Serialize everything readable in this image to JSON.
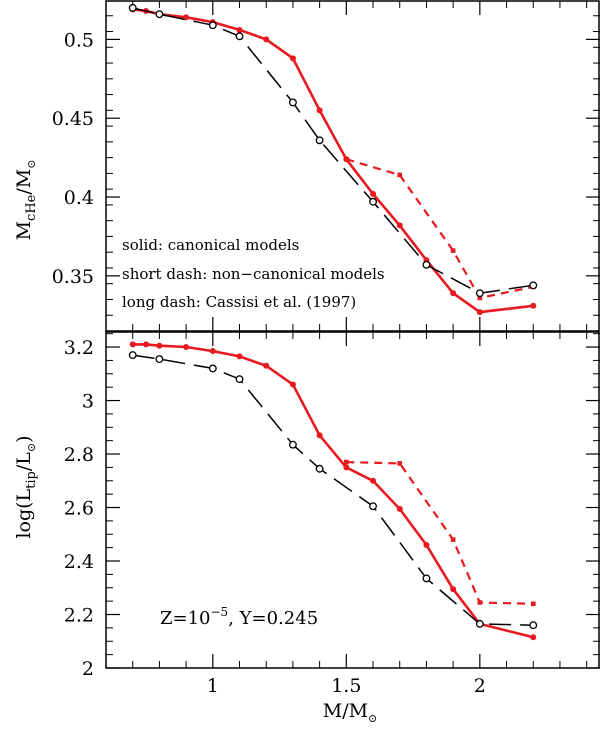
{
  "chart_data": [
    {
      "type": "line",
      "panel": "top",
      "ylabel_main": "M",
      "ylabel_sub": "cHe",
      "ylabel_tail": "/M",
      "ylim": [
        0.315,
        0.525
      ],
      "yticks": [
        0.35,
        0.4,
        0.45,
        0.5
      ],
      "ytick_labels": [
        "0.35",
        "0.4",
        "0.45",
        "0.5"
      ],
      "annotations": [
        "solid: canonical models",
        "short dash: non−canonical models",
        "long dash: Cassisi et al. (1997)"
      ],
      "series": [
        {
          "name": "canonical models",
          "style": "solid",
          "color": "#e8191f",
          "x": [
            0.7,
            0.75,
            0.8,
            0.9,
            1.0,
            1.1,
            1.2,
            1.3,
            1.4,
            1.5,
            1.6,
            1.7,
            1.8,
            1.9,
            2.0,
            2.2
          ],
          "y": [
            0.519,
            0.518,
            0.516,
            0.514,
            0.511,
            0.506,
            0.5,
            0.488,
            0.455,
            0.424,
            0.402,
            0.382,
            0.36,
            0.339,
            0.327,
            0.331
          ]
        },
        {
          "name": "non-canonical models",
          "style": "short-dash",
          "color": "#e8191f",
          "x": [
            1.5,
            1.7,
            1.9,
            2.0,
            2.2
          ],
          "y": [
            0.424,
            0.414,
            0.366,
            0.336,
            0.343
          ]
        },
        {
          "name": "Cassisi et al. (1997)",
          "style": "long-dash",
          "color": "#000000",
          "x": [
            0.7,
            0.8,
            1.0,
            1.1,
            1.3,
            1.4,
            1.6,
            1.8,
            2.0,
            2.2
          ],
          "y": [
            0.52,
            0.516,
            0.509,
            0.502,
            0.46,
            0.436,
            0.397,
            0.357,
            0.339,
            0.344
          ]
        }
      ]
    },
    {
      "type": "line",
      "panel": "bottom",
      "ylabel_main": "log(L",
      "ylabel_sub": "tip",
      "ylabel_tail": "/L",
      "ylabel_close": ")",
      "xlabel_main": "M/M",
      "ylim": [
        2.0,
        3.26
      ],
      "yticks": [
        2.0,
        2.2,
        2.4,
        2.6,
        2.8,
        3.0,
        3.2
      ],
      "ytick_labels": [
        "2",
        "2.2",
        "2.4",
        "2.6",
        "2.8",
        "3",
        "3.2"
      ],
      "xlim": [
        0.6,
        2.45
      ],
      "xticks": [
        1.0,
        1.5,
        2.0
      ],
      "xtick_labels": [
        "1",
        "1.5",
        "2"
      ],
      "annotation_z": "Z=10",
      "annotation_z_exp": "−5",
      "annotation_y": ",  Y=0.245",
      "series": [
        {
          "name": "canonical models",
          "style": "solid",
          "color": "#e8191f",
          "x": [
            0.7,
            0.75,
            0.8,
            0.9,
            1.0,
            1.1,
            1.2,
            1.3,
            1.4,
            1.5,
            1.6,
            1.7,
            1.8,
            1.9,
            2.0,
            2.2
          ],
          "y": [
            3.21,
            3.21,
            3.205,
            3.2,
            3.185,
            3.165,
            3.13,
            3.06,
            2.87,
            2.75,
            2.7,
            2.595,
            2.46,
            2.295,
            2.165,
            2.115
          ]
        },
        {
          "name": "non-canonical models",
          "style": "short-dash",
          "color": "#e8191f",
          "x": [
            1.5,
            1.7,
            1.9,
            2.0,
            2.2
          ],
          "y": [
            2.77,
            2.765,
            2.48,
            2.245,
            2.24
          ]
        },
        {
          "name": "Cassisi et al. (1997)",
          "style": "long-dash",
          "color": "#000000",
          "x": [
            0.7,
            0.8,
            1.0,
            1.1,
            1.3,
            1.4,
            1.6,
            1.8,
            2.0,
            2.2
          ],
          "y": [
            3.17,
            3.155,
            3.12,
            3.08,
            2.835,
            2.745,
            2.605,
            2.335,
            2.165,
            2.16
          ]
        }
      ]
    }
  ]
}
